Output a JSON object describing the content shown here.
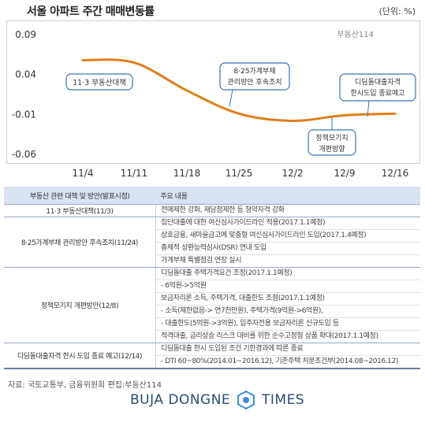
{
  "title": "서울 아파트 주간 매매변동률",
  "unit": "(단위: %)",
  "brand": "부동산114",
  "chart_data": {
    "type": "line",
    "x": [
      "11/4",
      "11/11",
      "11/18",
      "11/25",
      "12/2",
      "12/9",
      "12/16"
    ],
    "values": [
      0.058,
      0.055,
      0.02,
      -0.009,
      -0.018,
      -0.011,
      -0.009
    ],
    "yticks": [
      "0.09",
      "0.04",
      "-0.01",
      "-0.06"
    ],
    "ylim": [
      -0.06,
      0.09
    ],
    "line_color": "#e07e1b",
    "annotations": [
      {
        "text": "11·3 부동산대책",
        "x": "11/4"
      },
      {
        "text": "8·25가계부채 관리방안 후속조치",
        "x": "11/24"
      },
      {
        "text": "정책모기지 개편방향",
        "x": "12/8"
      },
      {
        "text": "디딤돌대출자격 한시도입 종료예고",
        "x": "12/14"
      }
    ]
  },
  "table": {
    "headers": [
      "부동산 관련 대책 및 방안(발표시점)",
      "주요 내용"
    ],
    "groups": [
      {
        "policy": "11·3 부동산대책(11/3)",
        "items": [
          "전매제한 강화, 재당첨제한 등 청약자격 강화"
        ]
      },
      {
        "policy": "8·25가계부채 관리방안 후속조치(11/24)",
        "items": [
          "집단대출에 대한 여신심사가이드라인 적용(2017.1.1예정)",
          "상호금융, 새마을금고에 맞춤형 여신심사가이드라인 도입(2017.1.4예정)",
          "총체적 상환능력심사(DSR) 연내 도입",
          "가계부채 특별점검 연장 실시"
        ]
      },
      {
        "policy": "정책모기지 개편방안(12/8)",
        "items": [
          "디딤돌대출 주택가격요건 조정(2017.1.1예정)",
          "- 6억원->5억원",
          "보금자리론 소득, 주택가격, 대출한도 조정(2017.1.1예정)",
          "- 소득(제한없음-> 연7천만원), 주택가격(9억원->6억원),",
          "- 대출한도(5억원->3억원), 입주자전용 보금자리론 신규도입 등",
          "적격대출, 금리상승 리스크 대비를 위한 순수고정형 상품 확대(2017.1.1예정)"
        ]
      },
      {
        "policy": "디딤돌대출자격 한시 도입 종료 예고(12/14)",
        "items": [
          "디딤돌대출 한시 도입된 조건 기한경과에 따른 종료",
          "- DTI 60~80%(2014.01~2016.12), 기존주택 처분조건부(2014.08~2016.12)"
        ]
      }
    ]
  },
  "source": "자료: 국토교통부, 금융위원회  편집:부동산114",
  "footer": {
    "left": "BUJA DONGNE",
    "right": "TIMES"
  }
}
